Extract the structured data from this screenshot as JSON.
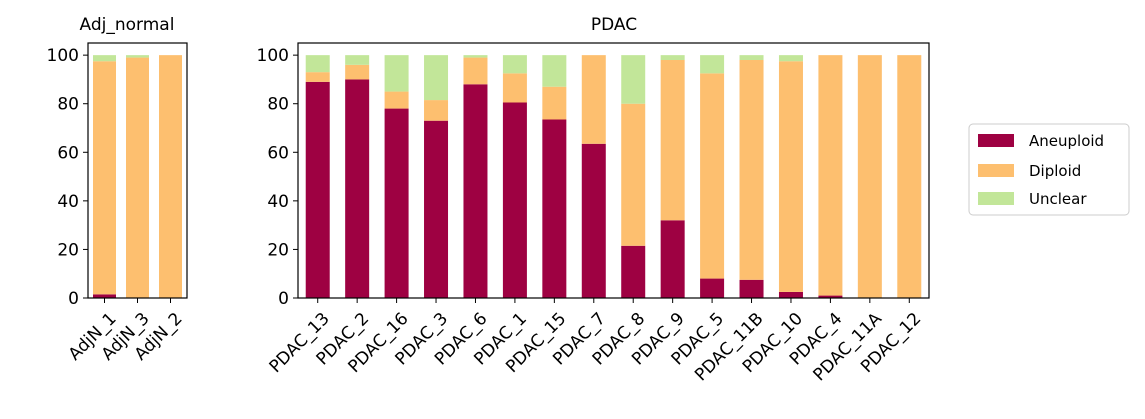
{
  "colors": {
    "Aneuploid": "#9e0142",
    "Diploid": "#fdbf6f",
    "Unclear": "#c2e699"
  },
  "legend": {
    "entries": [
      "Aneuploid",
      "Diploid",
      "Unclear"
    ]
  },
  "chart_data": [
    {
      "type": "bar",
      "stacked": true,
      "title": "Adj_normal",
      "categories": [
        "AdjN_1",
        "AdjN_3",
        "AdjN_2"
      ],
      "series": [
        {
          "name": "Aneuploid",
          "values": [
            1.5,
            0,
            0
          ]
        },
        {
          "name": "Diploid",
          "values": [
            96,
            99,
            100
          ]
        },
        {
          "name": "Unclear",
          "values": [
            2.5,
            1,
            0
          ]
        }
      ],
      "ylim": [
        0,
        105
      ],
      "yticks": [
        0,
        20,
        40,
        60,
        80,
        100
      ]
    },
    {
      "type": "bar",
      "stacked": true,
      "title": "PDAC",
      "categories": [
        "PDAC_13",
        "PDAC_2",
        "PDAC_16",
        "PDAC_3",
        "PDAC_6",
        "PDAC_1",
        "PDAC_15",
        "PDAC_7",
        "PDAC_8",
        "PDAC_9",
        "PDAC_5",
        "PDAC_11B",
        "PDAC_10",
        "PDAC_4",
        "PDAC_11A",
        "PDAC_12"
      ],
      "series": [
        {
          "name": "Aneuploid",
          "values": [
            89,
            90,
            78,
            73,
            88,
            80.5,
            73.5,
            63.5,
            21.5,
            32,
            8,
            7.5,
            2.5,
            1,
            0,
            0
          ]
        },
        {
          "name": "Diploid",
          "values": [
            4,
            6,
            7,
            8.5,
            11,
            12,
            13.5,
            36.5,
            58.5,
            66,
            84.5,
            90.5,
            95,
            99,
            100,
            100
          ]
        },
        {
          "name": "Unclear",
          "values": [
            7,
            4,
            15,
            18.5,
            1,
            7.5,
            13,
            0,
            20,
            2,
            7.5,
            2,
            2.5,
            0,
            0,
            0
          ]
        }
      ],
      "ylim": [
        0,
        105
      ],
      "yticks": [
        0,
        20,
        40,
        60,
        80,
        100
      ],
      "legend_position": "right"
    }
  ]
}
